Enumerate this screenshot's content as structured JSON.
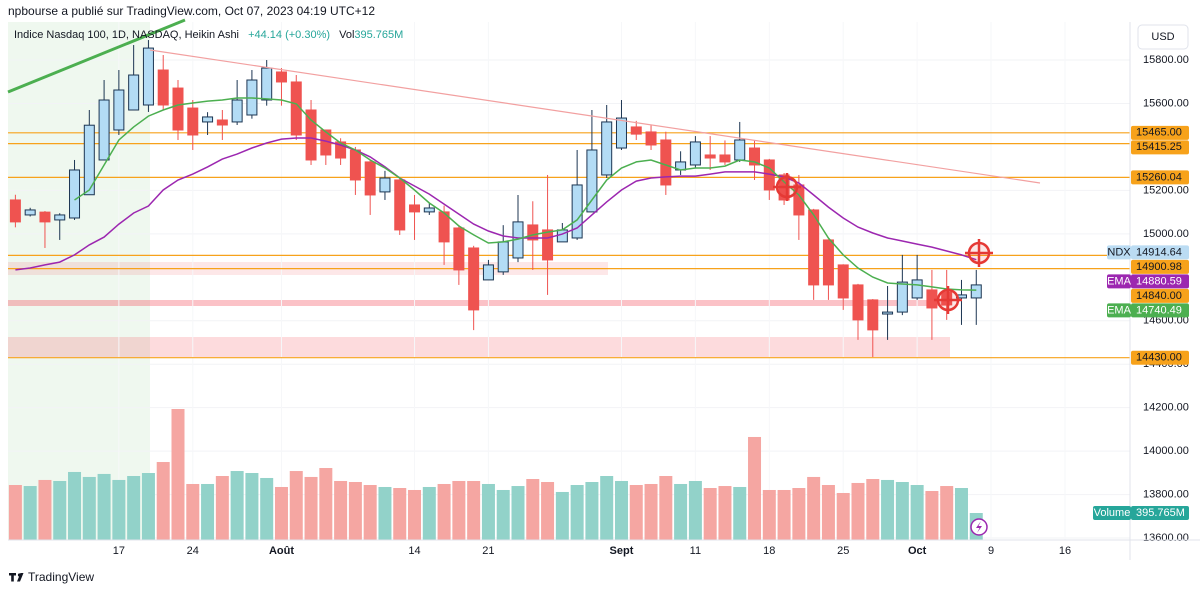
{
  "header": "npbourse a publié sur TradingView.com, Oct 07, 2023 04:19 UTC+12",
  "currency": "USD",
  "footer": "TradingView",
  "chart_data": {
    "type": "candlestick",
    "title": "Indice Nasdaq 100, 1D, NASDAQ, Heikin Ashi",
    "change": "+44.14 (+0.30%)",
    "up_color": "#b3dcf5",
    "down_color": "#ef5350",
    "outline_color": "#1c3552",
    "open": [
      15156,
      15087,
      15100,
      15064,
      15073,
      15180,
      15340,
      15478,
      15570,
      15593,
      15754,
      15671,
      15579,
      15515,
      15524,
      15515,
      15547,
      15616,
      15745,
      15699,
      15570,
      15478,
      15423,
      15386,
      15331,
      15193,
      15248,
      15133,
      15101,
      15101,
      15027,
      14935,
      14788,
      14825,
      14889,
      15041,
      15018,
      14963,
      14981,
      15101,
      15271,
      15395,
      15492,
      15469,
      15432,
      15294,
      15317,
      15363,
      15363,
      15340,
      15395,
      15340,
      15271,
      15225,
      15110,
      14972,
      14857,
      14765,
      14696,
      14631,
      14640,
      14705,
      14742,
      14732,
      14705,
      14705
    ],
    "high": [
      15180,
      15120,
      15105,
      15095,
      15340,
      15570,
      15708,
      15754,
      15869,
      15892,
      15823,
      15708,
      15616,
      15560,
      15570,
      15708,
      15754,
      15800,
      15763,
      15731,
      15616,
      15478,
      15440,
      15400,
      15340,
      15290,
      15260,
      15179,
      15140,
      15130,
      15040,
      14945,
      14880,
      15040,
      15179,
      15150,
      15271,
      15050,
      15386,
      15570,
      15593,
      15616,
      15520,
      15500,
      15470,
      15380,
      15450,
      15450,
      15430,
      15515,
      15430,
      15345,
      15280,
      15271,
      15115,
      14975,
      14860,
      14770,
      14700,
      14760,
      14903,
      14903,
      14834,
      14834,
      14788,
      14834
    ],
    "low": [
      15030,
      15080,
      14935,
      14972,
      15064,
      15180,
      15340,
      15455,
      15570,
      15561,
      15570,
      15432,
      15386,
      15455,
      15432,
      15501,
      15530,
      15590,
      15590,
      15432,
      15317,
      15317,
      15317,
      15179,
      15087,
      15156,
      14995,
      14972,
      15087,
      14857,
      14765,
      14557,
      14788,
      14811,
      14870,
      14834,
      14719,
      14963,
      14972,
      15101,
      15257,
      15386,
      15432,
      15386,
      15179,
      15271,
      15303,
      15294,
      15317,
      15331,
      15248,
      15156,
      15133,
      14972,
      14696,
      14696,
      14650,
      14512,
      14433,
      14512,
      14626,
      14696,
      14512,
      14604,
      14581,
      14581
    ],
    "close": [
      15055,
      15110,
      15055,
      15087,
      15294,
      15500,
      15616,
      15662,
      15731,
      15855,
      15593,
      15478,
      15455,
      15538,
      15501,
      15616,
      15708,
      15763,
      15699,
      15455,
      15340,
      15363,
      15349,
      15248,
      15179,
      15257,
      15018,
      15101,
      15119,
      14963,
      14834,
      14650,
      14857,
      14963,
      15055,
      14972,
      14880,
      15018,
      15225,
      15386,
      15515,
      15533,
      15459,
      15409,
      15225,
      15331,
      15423,
      15349,
      15331,
      15432,
      15317,
      15202,
      15156,
      15087,
      14765,
      14765,
      14705,
      14604,
      14558,
      14640,
      14778,
      14788,
      14659,
      14673,
      14719,
      14765
    ],
    "volume": {
      "name": "Volume",
      "legend": "Vol",
      "up_color": "#92d2c9",
      "down_color": "#f5a6a2",
      "label_color": "#26a69a",
      "values": [
        806,
        791,
        880,
        865,
        997,
        924,
        968,
        880,
        938,
        982,
        1143,
        1920,
        821,
        821,
        938,
        1011,
        982,
        909,
        777,
        1011,
        924,
        1055,
        865,
        850,
        806,
        777,
        762,
        733,
        777,
        821,
        865,
        865,
        821,
        733,
        791,
        894,
        850,
        704,
        806,
        850,
        938,
        865,
        806,
        821,
        938,
        821,
        865,
        762,
        791,
        777,
        1510,
        733,
        733,
        762,
        924,
        806,
        689,
        836,
        894,
        880,
        850,
        806,
        718,
        791,
        762,
        395.765
      ],
      "value_label": "395.765M"
    },
    "series": [
      {
        "name": "EMA",
        "color": "#9c27b0",
        "last": 14880.59,
        "values": [
          14834,
          14843,
          14857,
          14870,
          14903,
          14949,
          14985,
          15045,
          15096,
          15128,
          15202,
          15248,
          15275,
          15308,
          15344,
          15367,
          15395,
          15418,
          15436,
          15441,
          15441,
          15427,
          15409,
          15386,
          15354,
          15308,
          15257,
          15220,
          15183,
          15137,
          15091,
          15045,
          15013,
          14990,
          14981,
          14981,
          14981,
          14999,
          15027,
          15087,
          15147,
          15202,
          15243,
          15257,
          15262,
          15266,
          15266,
          15275,
          15285,
          15285,
          15285,
          15275,
          15262,
          15234,
          15179,
          15123,
          15073,
          15031,
          15004,
          14981,
          14967,
          14953,
          14939,
          14921,
          14903,
          14881
        ]
      },
      {
        "name": "EMA",
        "color": "#4caf50",
        "last": 14740.49,
        "values": [
          null,
          null,
          null,
          null,
          15156,
          15202,
          15317,
          15432,
          15492,
          15542,
          15570,
          15593,
          15602,
          15611,
          15616,
          15625,
          15625,
          15621,
          15616,
          15598,
          15524,
          15469,
          15418,
          15386,
          15340,
          15303,
          15257,
          15202,
          15142,
          15096,
          15036,
          14995,
          14958,
          14963,
          14976,
          14995,
          15008,
          15018,
          15064,
          15156,
          15248,
          15303,
          15331,
          15340,
          15317,
          15294,
          15303,
          15303,
          15312,
          15340,
          15331,
          15303,
          15239,
          15179,
          15087,
          14981,
          14903,
          14843,
          14801,
          14774,
          14769,
          14765,
          14756,
          14746,
          14742,
          14741
        ]
      }
    ],
    "last_price": {
      "name": "NDX",
      "value": 14914.64,
      "color": "#bbdcf3"
    },
    "levels": [
      {
        "value": 15465,
        "label": "15465.00"
      },
      15415.25,
      15260.04,
      14900.98,
      {
        "value": 14840,
        "label": "14840.00"
      },
      {
        "value": 14430,
        "label": "14430.00"
      }
    ],
    "level_color": "#f7a21b",
    "xlim": [
      -0.5,
      75.4
    ],
    "xticks": [
      {
        "value": 7,
        "label": "17"
      },
      {
        "value": 12,
        "label": "24"
      },
      {
        "value": 18,
        "label": "Août"
      },
      {
        "value": 27,
        "label": "14"
      },
      {
        "value": 32,
        "label": "21"
      },
      {
        "value": 41,
        "label": "Sept"
      },
      {
        "value": 46,
        "label": "11"
      },
      {
        "value": 51,
        "label": "18"
      },
      {
        "value": 56,
        "label": "25"
      },
      {
        "value": 61,
        "label": "Oct"
      },
      {
        "value": 66,
        "label": "9"
      },
      {
        "value": 71,
        "label": "16"
      }
    ],
    "ylim": [
      13591,
      15975
    ],
    "yticks": [
      {
        "value": 15800,
        "label": "15800.00"
      },
      {
        "value": 15600,
        "label": "15600.00"
      },
      {
        "value": 15200,
        "label": "15200.00"
      },
      {
        "value": 15000,
        "label": "15000.00"
      },
      {
        "value": 14600,
        "label": "14600.00"
      },
      {
        "value": 14400,
        "label": "14400.00"
      },
      {
        "value": 14200,
        "label": "14200.00"
      },
      {
        "value": 14000,
        "label": "14000.00"
      },
      {
        "value": 13800,
        "label": "13800.00"
      },
      {
        "value": 13600,
        "label": "13600.00"
      }
    ],
    "grid": true
  }
}
